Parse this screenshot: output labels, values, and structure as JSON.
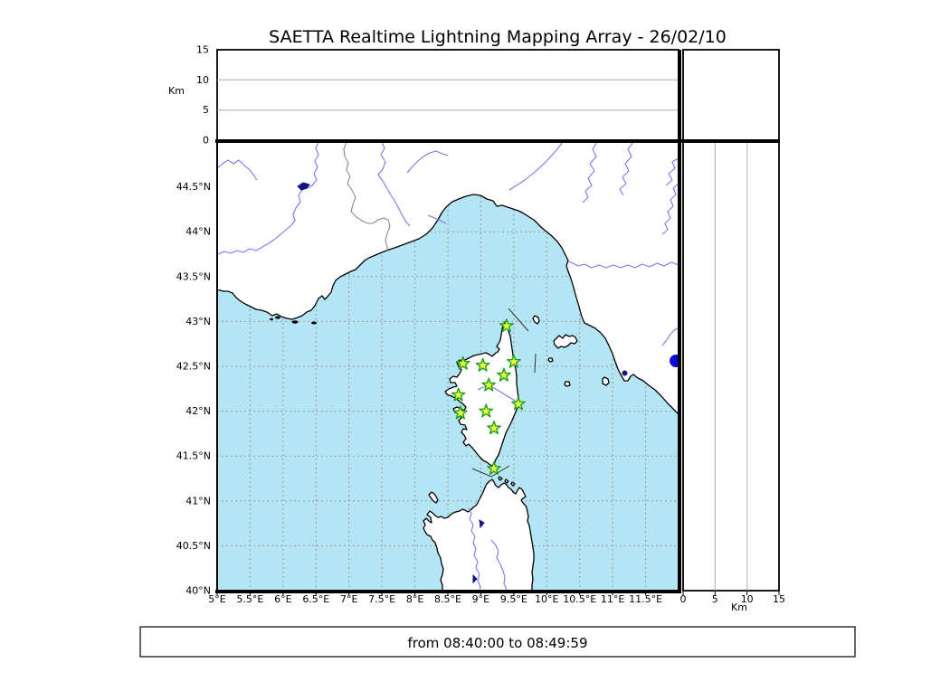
{
  "title": "SAETTA Realtime Lightning Mapping Array - 26/02/10",
  "footer": {
    "text": "from 08:40:00 to 08:49:59"
  },
  "altitude_panel": {
    "axis_label": "Km",
    "ticks": [
      {
        "km": 0,
        "label": "0"
      },
      {
        "km": 5,
        "label": "5"
      },
      {
        "km": 10,
        "label": "10"
      },
      {
        "km": 15,
        "label": "15"
      }
    ],
    "grid_km": [
      5,
      10
    ],
    "range_km": [
      0,
      15
    ]
  },
  "right_panel": {
    "axis_label": "Km",
    "ticks": [
      {
        "km": 0,
        "label": "0"
      },
      {
        "km": 5,
        "label": "5"
      },
      {
        "km": 10,
        "label": "10"
      },
      {
        "km": 15,
        "label": "15"
      }
    ],
    "grid_km": [
      5,
      10
    ],
    "range_km": [
      0,
      15
    ]
  },
  "map_panel": {
    "lon_range_deg": [
      5,
      12
    ],
    "lat_range_deg": [
      40,
      45
    ],
    "lon_ticks": [
      {
        "lon": 5,
        "label": "5°E"
      },
      {
        "lon": 5.5,
        "label": "5.5°E"
      },
      {
        "lon": 6,
        "label": "6°E"
      },
      {
        "lon": 6.5,
        "label": "6.5°E"
      },
      {
        "lon": 7,
        "label": "7°E"
      },
      {
        "lon": 7.5,
        "label": "7.5°E"
      },
      {
        "lon": 8,
        "label": "8°E"
      },
      {
        "lon": 8.5,
        "label": "8.5°E"
      },
      {
        "lon": 9,
        "label": "9°E"
      },
      {
        "lon": 9.5,
        "label": "9.5°E"
      },
      {
        "lon": 10,
        "label": "10°E"
      },
      {
        "lon": 10.5,
        "label": "10.5°E"
      },
      {
        "lon": 11,
        "label": "11°E"
      },
      {
        "lon": 11.5,
        "label": "11.5°E"
      }
    ],
    "lat_ticks": [
      {
        "lat": 44.5,
        "label": "44.5°N"
      },
      {
        "lat": 44,
        "label": "44°N"
      },
      {
        "lat": 43.5,
        "label": "43.5°N"
      },
      {
        "lat": 43,
        "label": "43°N"
      },
      {
        "lat": 42.5,
        "label": "42.5°N"
      },
      {
        "lat": 42,
        "label": "42°N"
      },
      {
        "lat": 41.5,
        "label": "41.5°N"
      },
      {
        "lat": 41,
        "label": "41°N"
      },
      {
        "lat": 40.5,
        "label": "40.5°N"
      },
      {
        "lat": 40,
        "label": "40°N"
      }
    ],
    "lon_gridlines": [
      5.5,
      6,
      6.5,
      7,
      7.5,
      8,
      8.5,
      9,
      9.5,
      10,
      10.5,
      11,
      11.5
    ],
    "lat_gridlines": [
      40.5,
      41,
      41.5,
      42,
      42.5,
      43,
      43.5,
      44,
      44.5
    ],
    "stations_lonlat": [
      [
        9.39,
        42.95
      ],
      [
        8.73,
        42.53
      ],
      [
        9.03,
        42.51
      ],
      [
        9.5,
        42.55
      ],
      [
        9.35,
        42.4
      ],
      [
        9.12,
        42.29
      ],
      [
        8.66,
        42.18
      ],
      [
        9.57,
        42.08
      ],
      [
        9.08,
        42.0
      ],
      [
        8.69,
        41.98
      ],
      [
        9.2,
        41.81
      ],
      [
        9.2,
        41.36
      ]
    ],
    "lake_marker_lonlat": [
      11.96,
      42.56
    ]
  },
  "colors": {
    "sea": "#b3e5f5",
    "land": "#ffffff",
    "coast": "#000000",
    "river": "#7878ee",
    "border": "#8a8a8a",
    "grid": "#9a9a9a",
    "panel_grid": "#aaaaaa",
    "star_fill": "#f7fa3d",
    "star_edge": "#18a018",
    "lake_fill": "#151580",
    "big_lake_fill": "#0b0bd6"
  }
}
